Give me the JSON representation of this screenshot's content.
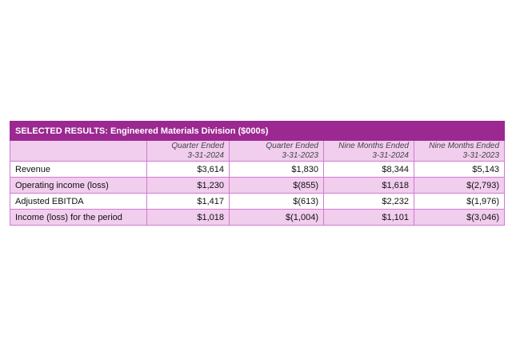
{
  "table": {
    "title": "SELECTED RESULTS:  Engineered Materials Division ($000s)",
    "columns": [
      {
        "line1": "Quarter Ended",
        "line2": "3-31-2024"
      },
      {
        "line1": "Quarter Ended",
        "line2": "3-31-2023"
      },
      {
        "line1": "Nine Months Ended",
        "line2": "3-31-2024"
      },
      {
        "line1": "Nine Months Ended",
        "line2": "3-31-2023"
      }
    ],
    "rows": [
      {
        "label": "Revenue",
        "values": [
          "$3,614",
          "$1,830",
          "$8,344",
          "$5,143"
        ]
      },
      {
        "label": "Operating income (loss)",
        "values": [
          "$1,230",
          "$(855)",
          "$1,618",
          "$(2,793)"
        ]
      },
      {
        "label": "Adjusted EBITDA",
        "values": [
          "$1,417",
          "$(613)",
          "$2,232",
          "$(1,976)"
        ]
      },
      {
        "label": "Income (loss) for the period",
        "values": [
          "$1,018",
          "$(1,004)",
          "$1,101",
          "$(3,046)"
        ]
      }
    ],
    "colors": {
      "title_bg": "#9c2891",
      "row_pink": "#f1cdee",
      "border": "#d27ad0"
    }
  }
}
